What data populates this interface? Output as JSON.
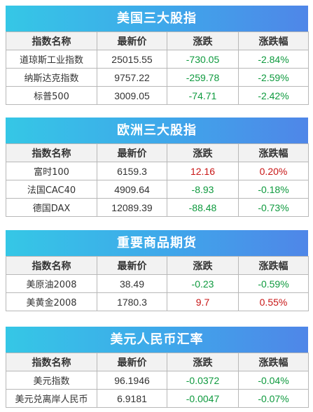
{
  "headers": [
    "指数名称",
    "最新价",
    "涨跌",
    "涨跌幅"
  ],
  "sections": [
    {
      "title": "美国三大股指",
      "rows": [
        {
          "name": "道琼斯工业指数",
          "price": "25015.55",
          "change": "-730.05",
          "pct": "-2.84%",
          "dir": "down"
        },
        {
          "name": "纳斯达克指数",
          "price": "9757.22",
          "change": "-259.78",
          "pct": "-2.59%",
          "dir": "down"
        },
        {
          "name": "标普500",
          "price": "3009.05",
          "change": "-74.71",
          "pct": "-2.42%",
          "dir": "down"
        }
      ]
    },
    {
      "title": "欧洲三大股指",
      "rows": [
        {
          "name": "富时100",
          "price": "6159.3",
          "change": "12.16",
          "pct": "0.20%",
          "dir": "up"
        },
        {
          "name": "法国CAC40",
          "price": "4909.64",
          "change": "-8.93",
          "pct": "-0.18%",
          "dir": "down"
        },
        {
          "name": "德国DAX",
          "price": "12089.39",
          "change": "-88.48",
          "pct": "-0.73%",
          "dir": "down"
        }
      ]
    },
    {
      "title": "重要商品期货",
      "rows": [
        {
          "name": "美原油2008",
          "price": "38.49",
          "change": "-0.23",
          "pct": "-0.59%",
          "dir": "down"
        },
        {
          "name": "美黄金2008",
          "price": "1780.3",
          "change": "9.7",
          "pct": "0.55%",
          "dir": "up"
        }
      ]
    },
    {
      "title": "美元人民币汇率",
      "rows": [
        {
          "name": "美元指数",
          "price": "96.1946",
          "change": "-0.0372",
          "pct": "-0.04%",
          "dir": "down"
        },
        {
          "name": "美元兑离岸人民币",
          "price": "6.9181",
          "change": "-0.0047",
          "pct": "-0.07%",
          "dir": "down"
        }
      ]
    }
  ],
  "colors": {
    "down": "#0e9a3e",
    "up": "#c81616",
    "title_gradient_start": "#35c7e6",
    "title_gradient_end": "#4f86e8"
  }
}
